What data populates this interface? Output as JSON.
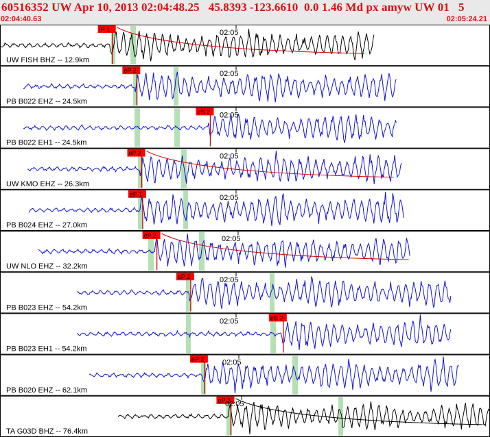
{
  "header": {
    "title": "60516352 UW Apr 10, 2013 02:04:48.25   45.8393 -123.6610  0.0 1.46 Md px amyw UW 01   5",
    "start_time": "02:04:40.63",
    "end_time": "02:05:24.21"
  },
  "colors": {
    "header_text": "#d81010",
    "header_bg": "#e9e9e9",
    "trace_primary": "#1010d8",
    "trace_first": "#000000",
    "pick": "#ff0000",
    "window": "#a8dba8"
  },
  "time_tick_label": "02:05",
  "traces": [
    {
      "station": "UW FISH BHZ -- 12.9km",
      "picks": [
        {
          "label": "iP 1",
          "t": 0.225
        }
      ],
      "trace_color": "#000000"
    },
    {
      "station": "PB B022 EHZ -- 24.5km",
      "picks": [
        {
          "label": "eP 2",
          "t": 0.275
        }
      ],
      "trace_color": "#1010d8"
    },
    {
      "station": "PB B022 EH1 -- 24.5km",
      "picks": [
        {
          "label": "eS 2",
          "t": 0.425
        }
      ],
      "trace_color": "#1010d8"
    },
    {
      "station": "UW KMO EHZ -- 26.3km",
      "picks": [
        {
          "label": "eP 2",
          "t": 0.285
        }
      ],
      "trace_color": "#1010d8"
    },
    {
      "station": "PB B024 EHZ -- 27.0km",
      "picks": [
        {
          "label": "eP 1",
          "t": 0.287
        }
      ],
      "trace_color": "#1010d8"
    },
    {
      "station": "UW NLO EHZ -- 32.2km",
      "picks": [
        {
          "label": "eP 2",
          "t": 0.316
        }
      ],
      "trace_color": "#1010d8"
    },
    {
      "station": "PB B023 EHZ -- 54.2km",
      "picks": [
        {
          "label": "eP 2",
          "t": 0.385
        }
      ],
      "trace_color": "#1010d8"
    },
    {
      "station": "PB B023 EH1 -- 54.2km",
      "picks": [
        {
          "label": "eS 2",
          "t": 0.574
        }
      ],
      "trace_color": "#1010d8"
    },
    {
      "station": "PB B020 EHZ -- 62.1km",
      "picks": [
        {
          "label": "eP 2",
          "t": 0.413
        }
      ],
      "trace_color": "#1010d8"
    },
    {
      "station": "TA G03D BHZ -- 76.4km",
      "picks": [
        {
          "label": "eP 2",
          "t": 0.467
        }
      ],
      "trace_color": "#000000"
    }
  ]
}
